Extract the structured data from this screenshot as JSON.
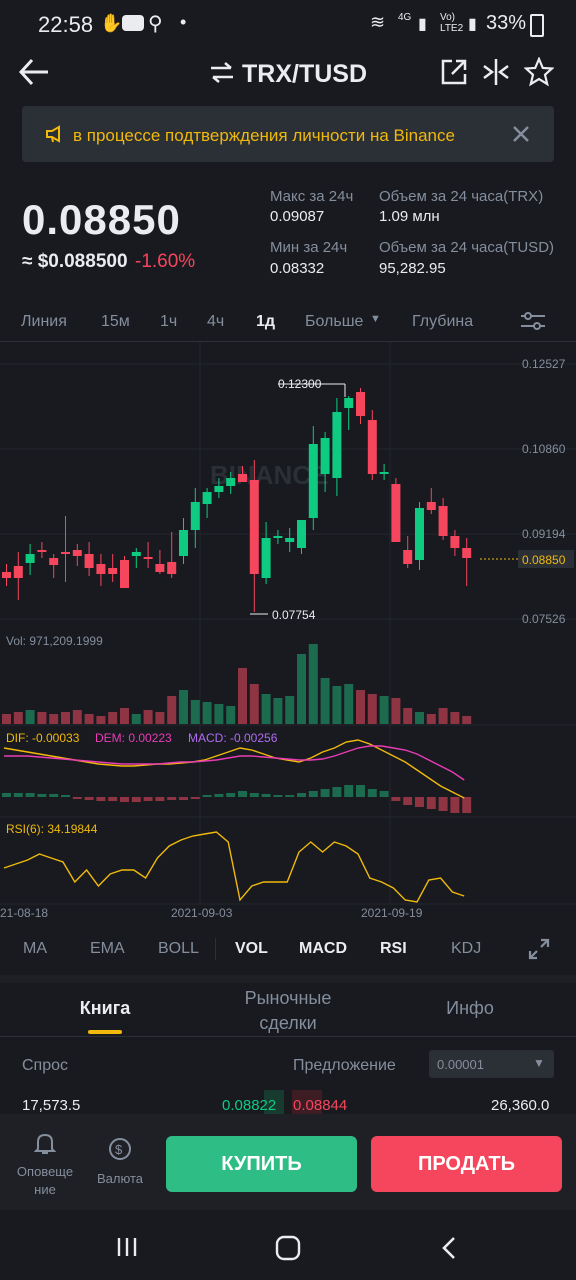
{
  "status_bar": {
    "time": "22:58",
    "network": "4G",
    "carrier": "Vo) LTE2",
    "battery": "33%"
  },
  "header": {
    "title": "TRX/TUSD"
  },
  "banner": {
    "text": "в процессе подтверждения личности на Binance"
  },
  "price": {
    "last": "0.08850",
    "usd": "≈ $0.088500",
    "change": "-1.60%"
  },
  "stats": {
    "high_label": "Макс за 24ч",
    "high_value": "0.09087",
    "low_label": "Мин за 24ч",
    "low_value": "0.08332",
    "vol_trx_label": "Объем за 24 часа(TRX)",
    "vol_trx_value": "1.09 млн",
    "vol_tusd_label": "Объем за 24 часа(TUSD)",
    "vol_tusd_value": "95,282.95"
  },
  "timeframes": {
    "line": "Линия",
    "m15": "15м",
    "h1": "1ч",
    "h4": "4ч",
    "d1": "1д",
    "more": "Больше",
    "depth": "Глубина"
  },
  "chart": {
    "price_axis": [
      "0.12527",
      "0.10860",
      "0.09194",
      "0.08850",
      "0.07526"
    ],
    "high_marker": "0.12300",
    "low_marker": "0.07754",
    "watermark": "BINANCE",
    "vol_label": "Vol: 971,209.1999",
    "macd_dif": "DIF: -0.00033",
    "macd_dem": "DEM: 0.00223",
    "macd_macd": "MACD: -0.00256",
    "rsi_label": "RSI(6): 34.19844",
    "dates": [
      "21-08-18",
      "2021-09-03",
      "2021-09-19"
    ]
  },
  "chart_data": {
    "type": "candlestick",
    "title": "",
    "y_axis_ticks": [
      0.12527,
      0.1086,
      0.09194,
      0.07526
    ],
    "last_price": 0.0885,
    "max_marker": 0.123,
    "min_marker": 0.07754,
    "x_ticks": [
      "21-08-18",
      "2021-09-03",
      "2021-09-19"
    ],
    "volume": 971209.1999,
    "macd": {
      "dif": -0.00033,
      "dem": 0.00223,
      "macd": -0.00256
    },
    "rsi6": 34.19844,
    "colors": {
      "up": "#0ecb81",
      "down": "#f6465d",
      "dif": "#f0b90b",
      "dem": "#e93cb4"
    }
  },
  "indicators": {
    "ma": "MA",
    "ema": "EMA",
    "boll": "BOLL",
    "vol": "VOL",
    "macd": "MACD",
    "rsi": "RSI",
    "kdj": "KDJ"
  },
  "book_tabs": {
    "book": "Книга",
    "trades": "Рыночные сделки",
    "info": "Инфо"
  },
  "orderbook": {
    "bid_label": "Спрос",
    "ask_label": "Предложение",
    "precision": "0.00001",
    "row": {
      "bid_qty": "17,573.5",
      "bid_price": "0.08822",
      "ask_price": "0.08844",
      "ask_qty": "26,360.0"
    }
  },
  "bottom": {
    "alerts": "Оповеще ние",
    "currency": "Валюта",
    "buy": "КУПИТЬ",
    "sell": "ПРОДАТЬ"
  },
  "colors": {
    "up": "#0ecb81",
    "down": "#f6465d",
    "accent": "#f0b90b",
    "bg": "#181a20"
  }
}
